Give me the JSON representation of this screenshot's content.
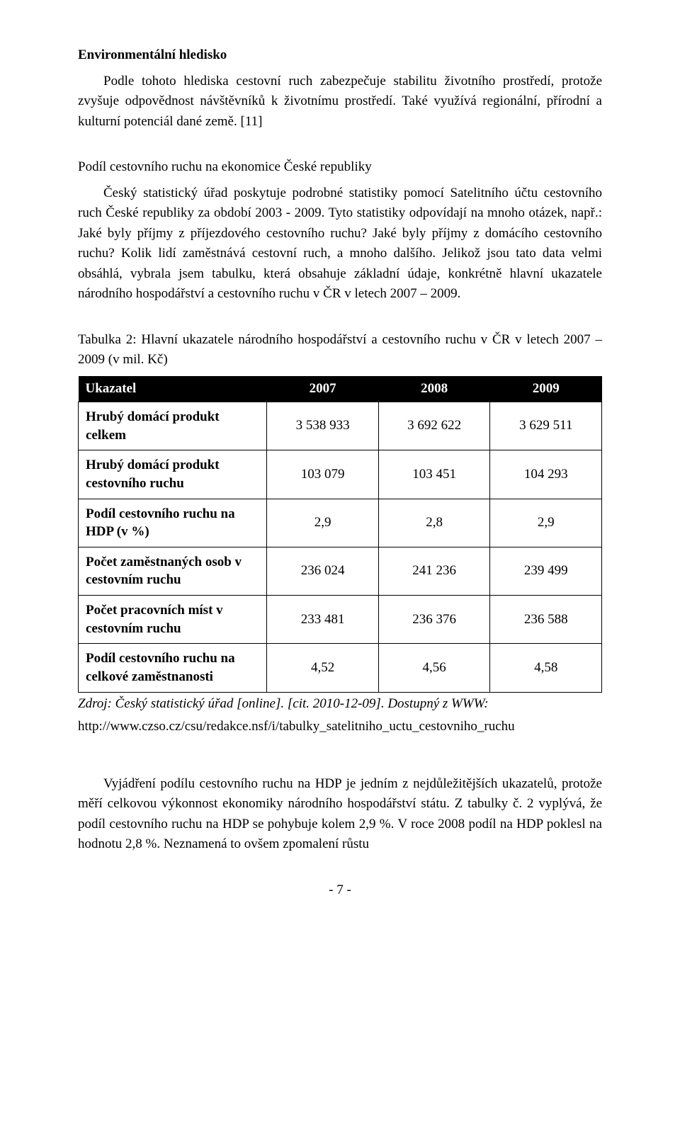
{
  "section": {
    "title": "Environmentální hledisko",
    "para1": "Podle tohoto hlediska cestovní ruch zabezpečuje stabilitu životního prostředí, protože zvyšuje odpovědnost návštěvníků k životnímu prostředí. Také využívá regionální, přírodní a kulturní potenciál dané země. [11]",
    "subtitle": "Podíl cestovního ruchu na ekonomice České republiky",
    "para2": "Český statistický úřad poskytuje podrobné statistiky pomocí Satelitního účtu cestovního ruch České republiky za období 2003 - 2009. Tyto statistiky odpovídají na mnoho otázek, např.: Jaké byly příjmy z příjezdového cestovního ruchu? Jaké byly příjmy z domácího cestovního ruchu? Kolik lidí zaměstnává cestovní ruch, a mnoho dalšího. Jelikož jsou tato data velmi obsáhlá, vybrala jsem tabulku, která obsahuje základní údaje, konkrétně hlavní ukazatele národního hospodářství a cestovního ruchu v ČR v letech 2007 – 2009.",
    "table_caption": "Tabulka 2: Hlavní ukazatele národního hospodářství a cestovního ruchu v ČR v letech 2007 – 2009 (v mil. Kč)"
  },
  "table": {
    "columns": [
      "Ukazatel",
      "2007",
      "2008",
      "2009"
    ],
    "rows": [
      {
        "label": "Hrubý domácí produkt celkem",
        "cells": [
          "3 538 933",
          "3 692 622",
          "3 629 511"
        ]
      },
      {
        "label": "Hrubý domácí produkt cestovního ruchu",
        "cells": [
          "103 079",
          "103 451",
          "104 293"
        ]
      },
      {
        "label": "Podíl cestovního ruchu na HDP (v %)",
        "cells": [
          "2,9",
          "2,8",
          "2,9"
        ]
      },
      {
        "label": "Počet zaměstnaných osob v cestovním ruchu",
        "cells": [
          "236 024",
          "241 236",
          "239 499"
        ]
      },
      {
        "label": "Počet pracovních míst v cestovním ruchu",
        "cells": [
          "233 481",
          "236 376",
          "236 588"
        ]
      },
      {
        "label": "Podíl cestovního ruchu na celkové zaměstnanosti",
        "cells": [
          "4,52",
          "4,56",
          "4,58"
        ]
      }
    ],
    "col_widths": [
      "36%",
      "21.3%",
      "21.3%",
      "21.3%"
    ]
  },
  "source": {
    "text": "Zdroj: Český statistický úřad [online]. [cit. 2010-12-09]. Dostupný z WWW:",
    "url": "http://www.czso.cz/csu/redakce.nsf/i/tabulky_satelitniho_uctu_cestovniho_ruchu"
  },
  "closing_para": "Vyjádření podílu cestovního ruchu na HDP je jedním z nejdůležitějších ukazatelů, protože měří celkovou výkonnost ekonomiky národního hospodářství státu. Z tabulky č. 2 vyplývá, že podíl cestovního ruchu na HDP se pohybuje kolem 2,9 %. V roce 2008 podíl na HDP poklesl na hodnotu 2,8 %. Neznamená to ovšem zpomalení růstu",
  "page_number": "- 7 -"
}
